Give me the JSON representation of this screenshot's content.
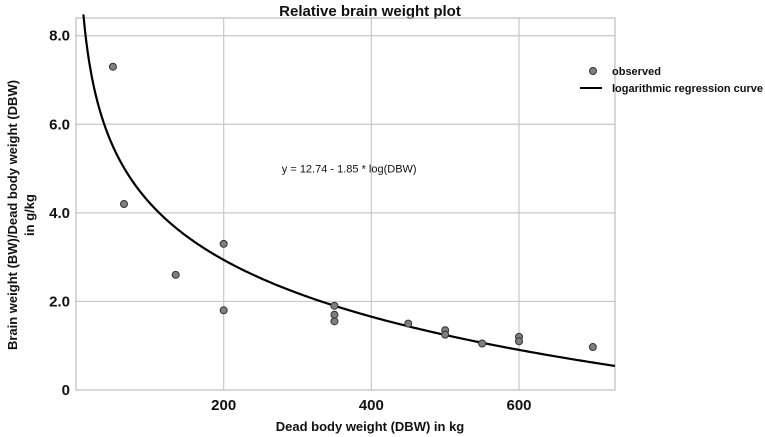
{
  "chart_data": {
    "type": "scatter",
    "title": "Relative brain weight plot",
    "xlabel": "Dead body weight (DBW) in kg",
    "ylabel_lines": [
      "Brain weight (BW)/Dead body weight (DBW)",
      "in g/kg"
    ],
    "xlim": [
      0,
      730
    ],
    "ylim": [
      0,
      8.4
    ],
    "xticks": [
      {
        "value": 200,
        "label": "200"
      },
      {
        "value": 400,
        "label": "400"
      },
      {
        "value": 600,
        "label": "600"
      }
    ],
    "yticks": [
      {
        "value": 0,
        "label": "0"
      },
      {
        "value": 2,
        "label": "2.0"
      },
      {
        "value": 4,
        "label": "4.0"
      },
      {
        "value": 6,
        "label": "6.0"
      },
      {
        "value": 8,
        "label": "8.0"
      }
    ],
    "grid": true,
    "legend_position": "top-right",
    "series": [
      {
        "name": "observed",
        "kind": "scatter",
        "color": "#7f7f7f",
        "points": [
          {
            "x": 50,
            "y": 7.3
          },
          {
            "x": 65,
            "y": 4.2
          },
          {
            "x": 135,
            "y": 2.6
          },
          {
            "x": 200,
            "y": 3.3
          },
          {
            "x": 200,
            "y": 1.8
          },
          {
            "x": 350,
            "y": 1.9
          },
          {
            "x": 350,
            "y": 1.7
          },
          {
            "x": 350,
            "y": 1.55
          },
          {
            "x": 450,
            "y": 1.5
          },
          {
            "x": 500,
            "y": 1.35
          },
          {
            "x": 500,
            "y": 1.25
          },
          {
            "x": 550,
            "y": 1.05
          },
          {
            "x": 600,
            "y": 1.2
          },
          {
            "x": 600,
            "y": 1.1
          },
          {
            "x": 700,
            "y": 0.97
          }
        ]
      },
      {
        "name": "logarithmic regression curve",
        "kind": "line",
        "color": "#000000",
        "equation": {
          "intercept": 12.74,
          "slope": -1.85
        },
        "x_range": [
          10,
          730
        ]
      }
    ],
    "annotations": [
      {
        "text": "y = 12.74 - 1.85 * log(DBW)",
        "x": 370,
        "y": 5.0
      }
    ]
  }
}
